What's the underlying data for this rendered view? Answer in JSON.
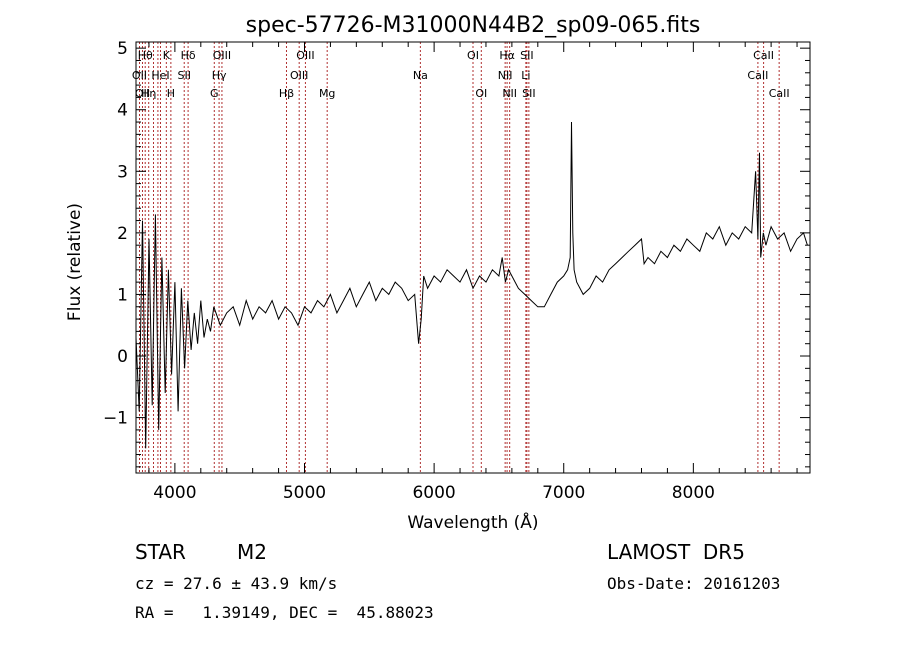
{
  "chart_data": {
    "type": "line",
    "title": "spec-57726-M31000N44B2_sp09-065.fits",
    "xlabel": "Wavelength (Å)",
    "ylabel": "Flux (relative)",
    "xlim": [
      3700,
      8900
    ],
    "ylim": [
      -1.9,
      5.1
    ],
    "x_ticks": [
      4000,
      5000,
      6000,
      7000,
      8000
    ],
    "y_ticks": [
      -1,
      0,
      1,
      2,
      3,
      4,
      5
    ],
    "grid": false,
    "line_color": "#000000",
    "marker_color": "#b03030",
    "spectrum": {
      "x": [
        3700,
        3725,
        3750,
        3775,
        3800,
        3825,
        3850,
        3875,
        3900,
        3925,
        3950,
        3975,
        4000,
        4025,
        4050,
        4075,
        4100,
        4125,
        4150,
        4175,
        4200,
        4225,
        4250,
        4275,
        4300,
        4350,
        4400,
        4450,
        4500,
        4550,
        4600,
        4650,
        4700,
        4750,
        4800,
        4850,
        4900,
        4950,
        5000,
        5050,
        5100,
        5150,
        5200,
        5250,
        5300,
        5350,
        5400,
        5450,
        5500,
        5550,
        5600,
        5650,
        5700,
        5750,
        5800,
        5850,
        5880,
        5900,
        5920,
        5950,
        6000,
        6050,
        6100,
        6150,
        6200,
        6250,
        6300,
        6350,
        6400,
        6450,
        6500,
        6525,
        6550,
        6575,
        6600,
        6650,
        6700,
        6750,
        6800,
        6850,
        6900,
        6950,
        7000,
        7030,
        7050,
        7060,
        7070,
        7080,
        7100,
        7150,
        7200,
        7250,
        7300,
        7350,
        7400,
        7450,
        7500,
        7550,
        7600,
        7620,
        7650,
        7700,
        7750,
        7800,
        7850,
        7900,
        7950,
        8000,
        8050,
        8100,
        8150,
        8200,
        8250,
        8300,
        8350,
        8400,
        8450,
        8480,
        8498,
        8510,
        8520,
        8540,
        8560,
        8600,
        8650,
        8700,
        8750,
        8800,
        8850,
        8880
      ],
      "y": [
        0.3,
        -0.9,
        2.2,
        -1.5,
        1.9,
        -0.8,
        2.3,
        -1.2,
        1.6,
        -0.6,
        1.4,
        -0.3,
        1.2,
        -0.9,
        1.1,
        -0.2,
        0.9,
        0.1,
        0.7,
        0.2,
        0.9,
        0.3,
        0.6,
        0.4,
        0.8,
        0.5,
        0.7,
        0.8,
        0.5,
        0.9,
        0.6,
        0.8,
        0.7,
        0.9,
        0.6,
        0.8,
        0.7,
        0.5,
        0.8,
        0.7,
        0.9,
        0.8,
        1.0,
        0.7,
        0.9,
        1.1,
        0.8,
        1.0,
        1.2,
        0.9,
        1.1,
        1.0,
        1.2,
        1.1,
        0.9,
        1.0,
        0.2,
        0.6,
        1.3,
        1.1,
        1.3,
        1.2,
        1.4,
        1.3,
        1.2,
        1.4,
        1.1,
        1.3,
        1.2,
        1.4,
        1.3,
        1.6,
        1.2,
        1.4,
        1.3,
        1.1,
        1.0,
        0.9,
        0.8,
        0.8,
        1.0,
        1.2,
        1.3,
        1.4,
        1.6,
        3.8,
        2.0,
        1.4,
        1.2,
        1.0,
        1.1,
        1.3,
        1.2,
        1.4,
        1.5,
        1.6,
        1.7,
        1.8,
        1.9,
        1.5,
        1.6,
        1.5,
        1.7,
        1.6,
        1.8,
        1.7,
        1.9,
        1.8,
        1.7,
        2.0,
        1.9,
        2.1,
        1.8,
        2.0,
        1.9,
        2.1,
        2.0,
        3.0,
        1.9,
        3.3,
        1.6,
        2.0,
        1.8,
        2.1,
        1.9,
        2.0,
        1.7,
        1.9,
        2.0,
        1.8
      ]
    },
    "line_markers": [
      {
        "wave": 3727,
        "label": "OII",
        "row": 2
      },
      {
        "wave": 3750,
        "label": "OII",
        "row": 3
      },
      {
        "wave": 3771,
        "label": "Hθ",
        "row": 1
      },
      {
        "wave": 3798,
        "label": "Hη",
        "row": 3
      },
      {
        "wave": 3835,
        "label": "",
        "row": 0
      },
      {
        "wave": 3869,
        "label": "",
        "row": 0
      },
      {
        "wave": 3889,
        "label": "HeI",
        "row": 2
      },
      {
        "wave": 3934,
        "label": "K",
        "row": 1
      },
      {
        "wave": 3969,
        "label": "H",
        "row": 3
      },
      {
        "wave": 4072,
        "label": "SII",
        "row": 2
      },
      {
        "wave": 4102,
        "label": "Hδ",
        "row": 1
      },
      {
        "wave": 4304,
        "label": "G",
        "row": 3
      },
      {
        "wave": 4341,
        "label": "Hγ",
        "row": 2
      },
      {
        "wave": 4363,
        "label": "OIII",
        "row": 1
      },
      {
        "wave": 4861,
        "label": "Hβ",
        "row": 3
      },
      {
        "wave": 4959,
        "label": "OIII",
        "row": 2
      },
      {
        "wave": 5007,
        "label": "OIII",
        "row": 1
      },
      {
        "wave": 5175,
        "label": "Mg",
        "row": 3
      },
      {
        "wave": 5894,
        "label": "Na",
        "row": 2
      },
      {
        "wave": 6300,
        "label": "OI",
        "row": 1
      },
      {
        "wave": 6364,
        "label": "OI",
        "row": 3
      },
      {
        "wave": 6548,
        "label": "NII",
        "row": 2
      },
      {
        "wave": 6563,
        "label": "Hα",
        "row": 1
      },
      {
        "wave": 6583,
        "label": "NII",
        "row": 3
      },
      {
        "wave": 6708,
        "label": "Li",
        "row": 2
      },
      {
        "wave": 6716,
        "label": "SII",
        "row": 1
      },
      {
        "wave": 6731,
        "label": "SII",
        "row": 3
      },
      {
        "wave": 8498,
        "label": "CaII",
        "row": 2
      },
      {
        "wave": 8542,
        "label": "CaII",
        "row": 1
      },
      {
        "wave": 8662,
        "label": "CaII",
        "row": 3
      }
    ]
  },
  "info": {
    "object_class": "STAR",
    "subclass": "M2",
    "survey": "LAMOST  DR5",
    "velocity": "cz = 27.6 ± 43.9 km/s",
    "obs_date": "Obs-Date: 20161203",
    "coords": "RA =   1.39149, DEC =  45.88023"
  }
}
